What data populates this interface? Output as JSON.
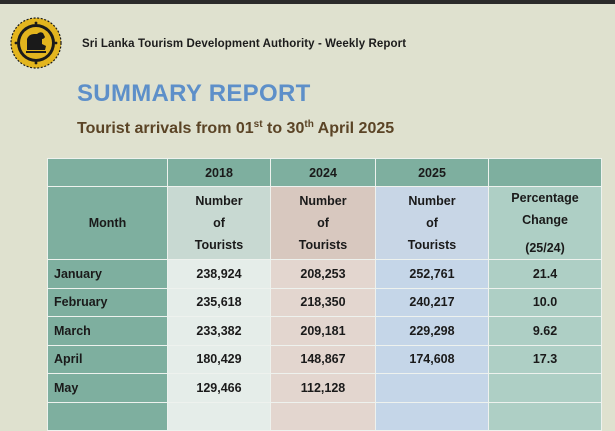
{
  "header": {
    "organization": "Sri Lanka Tourism Development Authority - Weekly Report",
    "title": "SUMMARY REPORT",
    "subtitle_pre": "Tourist arrivals from 01",
    "subtitle_sup1": "st",
    "subtitle_mid": " to 30",
    "subtitle_sup2": "th",
    "subtitle_post": " April 2025"
  },
  "table": {
    "years": [
      "2018",
      "2024",
      "2025"
    ],
    "month_header": "Month",
    "tourists_header": {
      "line1": "Number",
      "line2": "of",
      "line3": "Tourists"
    },
    "pct_header": {
      "line1": "Percentage",
      "line2": "Change",
      "line3": "(25/24)"
    },
    "rows": [
      {
        "month": "January",
        "y2018": "238,924",
        "y2024": "208,253",
        "y2025": "252,761",
        "pct": "21.4"
      },
      {
        "month": "February",
        "y2018": "235,618",
        "y2024": "218,350",
        "y2025": "240,217",
        "pct": "10.0"
      },
      {
        "month": "March",
        "y2018": "233,382",
        "y2024": "209,181",
        "y2025": "229,298",
        "pct": "9.62"
      },
      {
        "month": "April",
        "y2018": "180,429",
        "y2024": "148,867",
        "y2025": "174,608",
        "pct": "17.3"
      },
      {
        "month": "May",
        "y2018": "129,466",
        "y2024": "112,128",
        "y2025": "",
        "pct": ""
      }
    ]
  },
  "colors": {
    "title": "#5d8fc9",
    "subtitle": "#5b4426",
    "header_green": "#7eaf9f",
    "col_2018": "#c8d9d2",
    "col_2024": "#d8c8bf",
    "col_2025": "#c8d6e6",
    "col_pct": "#aecfc5"
  },
  "icons": {
    "logo": "sri-lanka-lion-emblem"
  }
}
